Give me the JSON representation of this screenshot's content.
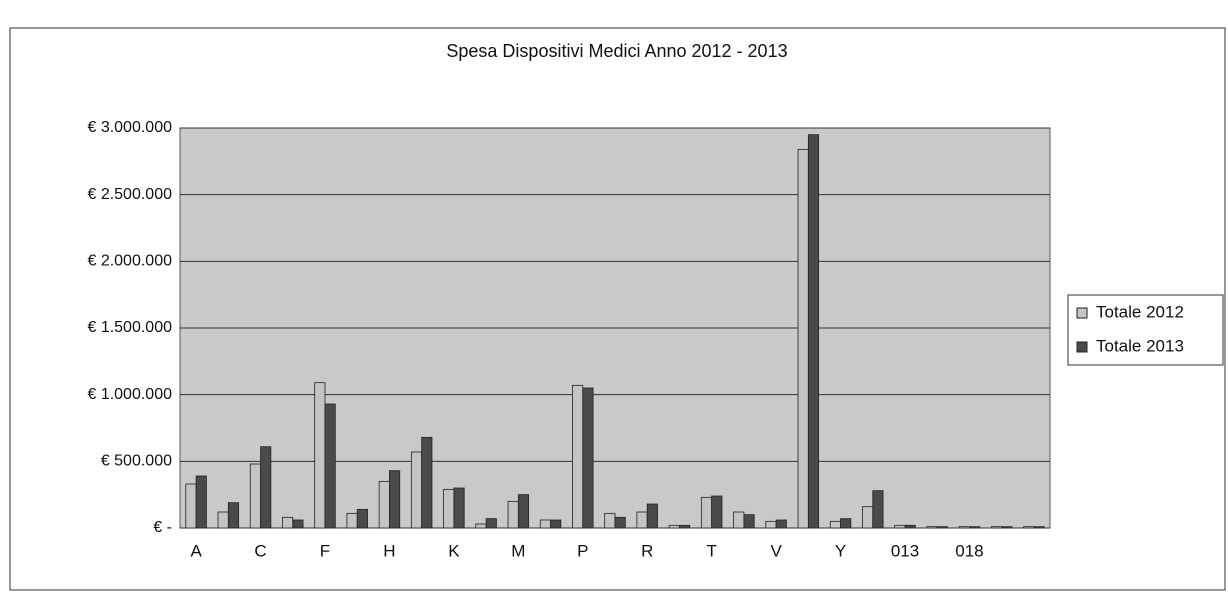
{
  "chart_data": {
    "type": "bar",
    "title": "Spesa Dispositivi Medici Anno 2012 - 2013",
    "categories": [
      "A",
      null,
      "C",
      null,
      "F",
      null,
      "H",
      null,
      "K",
      null,
      "M",
      null,
      "P",
      null,
      "R",
      null,
      "T",
      null,
      "V",
      null,
      "Y",
      null,
      "013",
      null,
      "018",
      null,
      null
    ],
    "series": [
      {
        "name": "Totale 2012",
        "color": "#c4c4c4",
        "values": [
          330000,
          120000,
          480000,
          80000,
          1090000,
          110000,
          350000,
          570000,
          290000,
          30000,
          200000,
          60000,
          1070000,
          110000,
          120000,
          20000,
          230000,
          120000,
          50000,
          2840000,
          50000,
          160000,
          20000,
          10000,
          10000,
          10000,
          10000
        ]
      },
      {
        "name": "Totale 2013",
        "color": "#4a4a4a",
        "values": [
          390000,
          190000,
          610000,
          60000,
          930000,
          140000,
          430000,
          680000,
          300000,
          70000,
          250000,
          60000,
          1050000,
          80000,
          180000,
          20000,
          240000,
          100000,
          60000,
          2950000,
          70000,
          280000,
          20000,
          10000,
          10000,
          10000,
          10000
        ]
      }
    ],
    "ylim": [
      0,
      3000000
    ],
    "yticks": [
      {
        "value": 0,
        "label": "€ -"
      },
      {
        "value": 500000,
        "label": "€ 500.000"
      },
      {
        "value": 1000000,
        "label": "€ 1.000.000"
      },
      {
        "value": 1500000,
        "label": "€ 1.500.000"
      },
      {
        "value": 2000000,
        "label": "€ 2.000.000"
      },
      {
        "value": 2500000,
        "label": "€ 2.500.000"
      },
      {
        "value": 3000000,
        "label": "€ 3.000.000"
      }
    ],
    "grid": true,
    "legend": "right"
  }
}
